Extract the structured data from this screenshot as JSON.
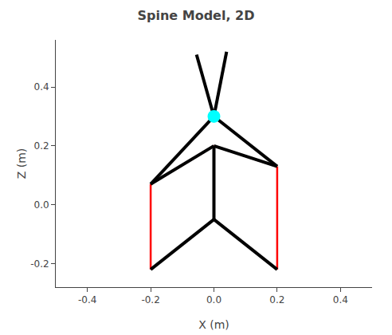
{
  "chart_data": {
    "type": "line",
    "title": "Spine Model, 2D",
    "xlabel": "X (m)",
    "ylabel": "Z (m)",
    "xlim": [
      -0.5,
      0.5
    ],
    "ylim": [
      -0.28,
      0.56
    ],
    "xticks": [
      -0.4,
      -0.2,
      {
        "value": 0.0,
        "label": "0.0"
      },
      0.2,
      0.4
    ],
    "yticks": [
      -0.2,
      {
        "value": 0.0,
        "label": "0.0"
      },
      0.2,
      0.4
    ],
    "grid": false,
    "series": [
      {
        "color": "red",
        "x": [
          -0.2,
          -0.2,
          null,
          -0.2,
          0.0,
          null,
          0.0,
          0.2,
          null,
          0.2,
          0.2
        ],
        "values": [
          -0.22,
          0.07,
          null,
          0.07,
          0.2,
          null,
          0.2,
          0.13,
          null,
          0.13,
          -0.22
        ]
      },
      {
        "color": "black",
        "x": [
          -0.2,
          0.0,
          null,
          0.2,
          0.0,
          null,
          0.0,
          0.0,
          null,
          0.0,
          -0.2,
          null,
          0.0,
          0.2,
          null,
          -0.2,
          0.0,
          null,
          0.2,
          0.0,
          null,
          0.0,
          -0.055,
          null,
          0.0,
          0.04
        ],
        "values": [
          -0.22,
          -0.05,
          null,
          -0.22,
          -0.05,
          null,
          -0.05,
          0.2,
          null,
          0.2,
          0.07,
          null,
          0.2,
          0.13,
          null,
          0.07,
          0.3,
          null,
          0.13,
          0.3,
          null,
          0.3,
          0.51,
          null,
          0.3,
          0.52
        ]
      },
      {
        "type": "scatter",
        "marker": "circle",
        "color": "cyan",
        "x": [
          0.0
        ],
        "values": [
          0.3
        ]
      }
    ]
  }
}
